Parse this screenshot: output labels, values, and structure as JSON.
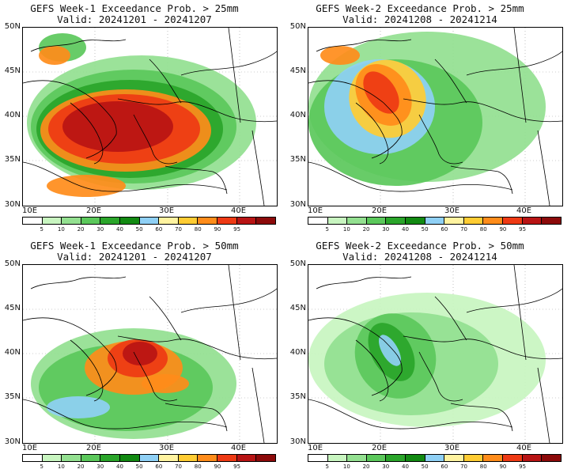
{
  "colorbar": {
    "colors": [
      "#ffffff",
      "#c8f5c0",
      "#93e090",
      "#5bc85b",
      "#2aa52a",
      "#128a12",
      "#8fd0f5",
      "#fff3a0",
      "#ffcc33",
      "#ff8c1a",
      "#ee3a14",
      "#b81414",
      "#8c0a0a"
    ],
    "labels": [
      "5",
      "10",
      "20",
      "30",
      "40",
      "50",
      "60",
      "70",
      "80",
      "90",
      "95"
    ]
  },
  "axes": {
    "lat_labels": [
      "50N",
      "45N",
      "40N",
      "35N",
      "30N"
    ],
    "lon_labels": [
      "10E",
      "20E",
      "30E",
      "40E"
    ]
  },
  "panels": [
    {
      "title": "GEFS Week-1 Exceedance Prob. > 25mm",
      "valid": "Valid: 20241201 - 20241207"
    },
    {
      "title": "GEFS Week-2 Exceedance Prob. > 25mm",
      "valid": "Valid: 20241208 - 20241214"
    },
    {
      "title": "GEFS Week-1 Exceedance Prob. > 50mm",
      "valid": "Valid: 20241201 - 20241207"
    },
    {
      "title": "GEFS Week-2 Exceedance Prob. > 50mm",
      "valid": "Valid: 20241208 - 20241214"
    }
  ]
}
